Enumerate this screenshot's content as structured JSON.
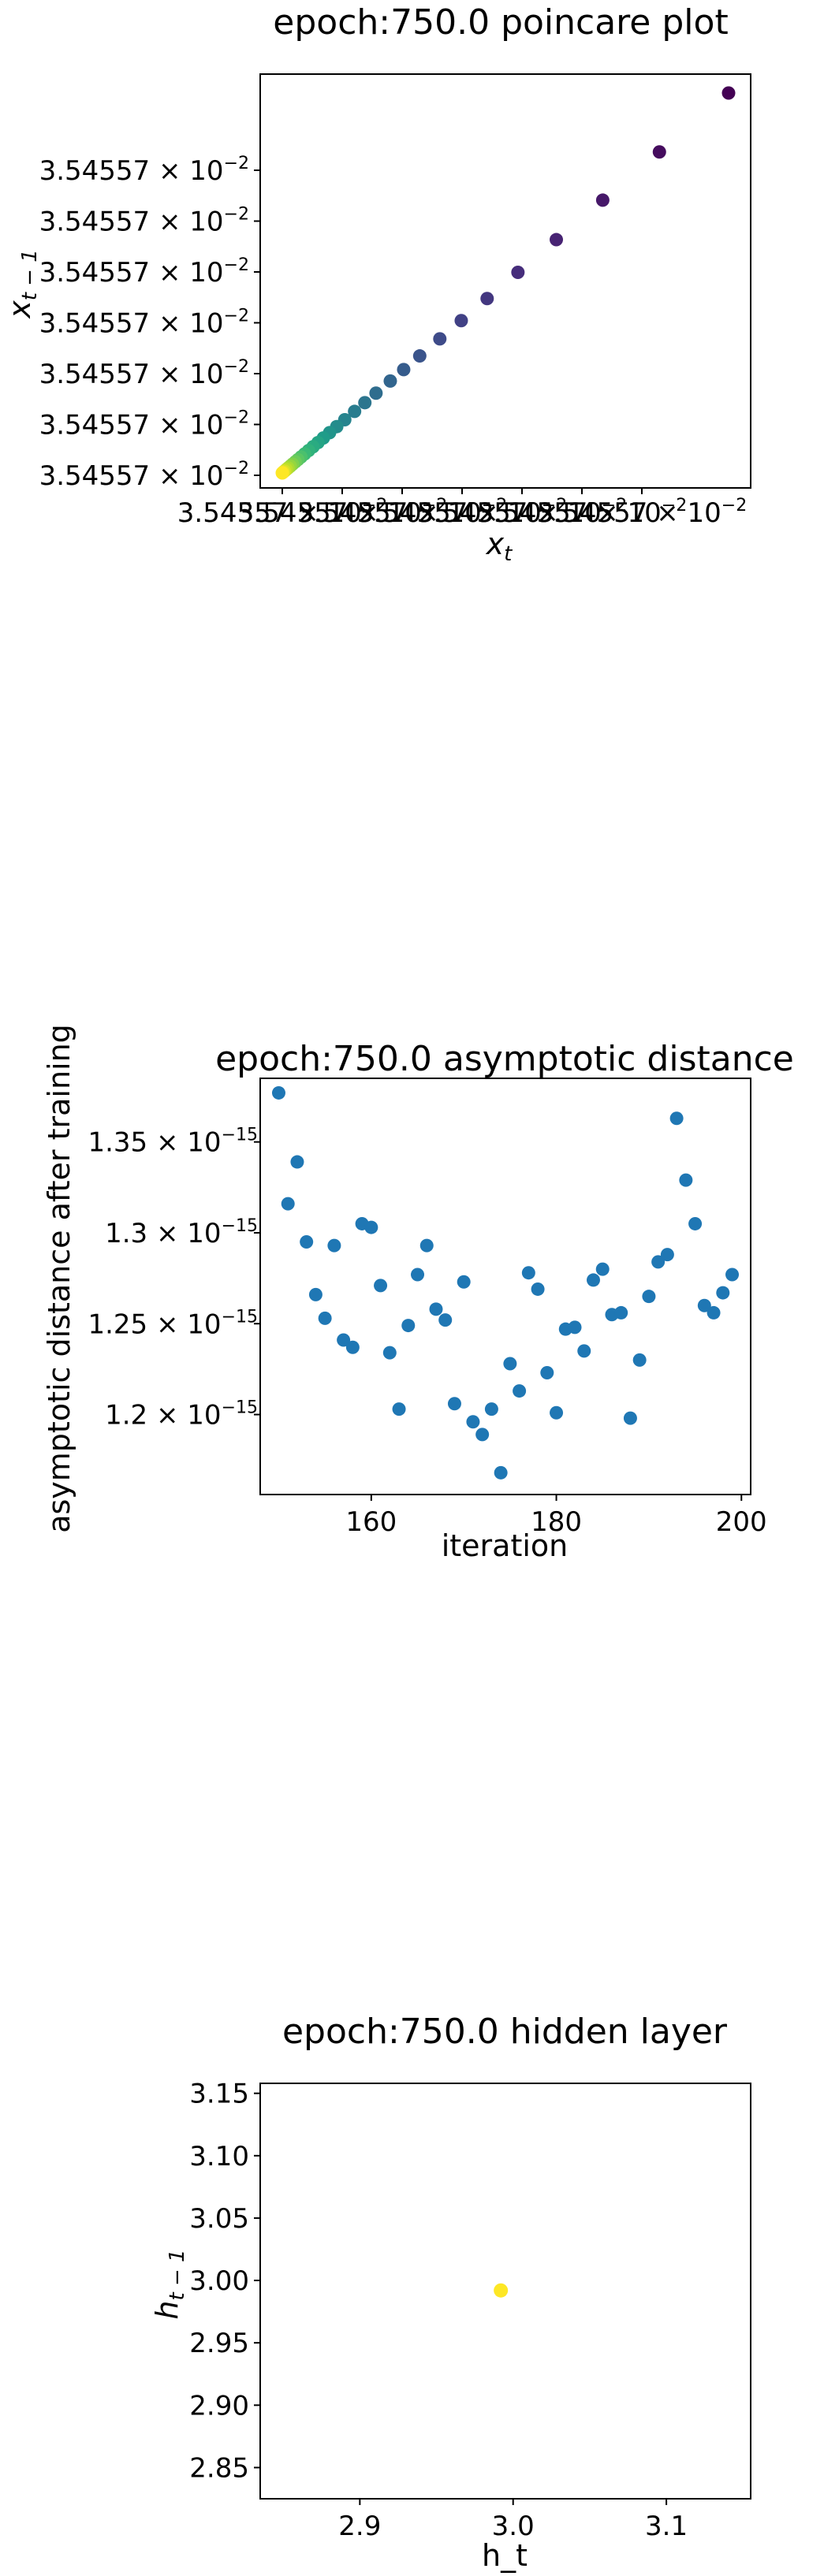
{
  "chart_data": [
    {
      "type": "scatter",
      "title": "epoch:750.0 poincare plot",
      "xlabel": "x",
      "xlabel_sub": "t",
      "ylabel": "x",
      "ylabel_sub": "t − 1",
      "tick_label": "3.54557 × 10",
      "tick_exponent": "−2",
      "x_tick_count": 7,
      "y_ticks": [
        "3.54557 × 10−2",
        "3.54557 × 10−2",
        "3.54557 × 10−2",
        "3.54557 × 10−2",
        "3.54557 × 10−2",
        "3.54557 × 10−2",
        "3.54557 × 10−2"
      ],
      "colormap": "viridis",
      "grid": false,
      "points": [
        {
          "x": 1.0,
          "y": 1.0
        },
        {
          "x": 0.845,
          "y": 0.845
        },
        {
          "x": 0.718,
          "y": 0.718
        },
        {
          "x": 0.614,
          "y": 0.614
        },
        {
          "x": 0.528,
          "y": 0.528
        },
        {
          "x": 0.459,
          "y": 0.459
        },
        {
          "x": 0.401,
          "y": 0.401
        },
        {
          "x": 0.353,
          "y": 0.353
        },
        {
          "x": 0.308,
          "y": 0.308
        },
        {
          "x": 0.272,
          "y": 0.272
        },
        {
          "x": 0.242,
          "y": 0.242
        },
        {
          "x": 0.21,
          "y": 0.21
        },
        {
          "x": 0.185,
          "y": 0.185
        },
        {
          "x": 0.162,
          "y": 0.162
        },
        {
          "x": 0.14,
          "y": 0.14
        },
        {
          "x": 0.122,
          "y": 0.122
        },
        {
          "x": 0.106,
          "y": 0.106
        },
        {
          "x": 0.092,
          "y": 0.092
        },
        {
          "x": 0.08,
          "y": 0.08
        },
        {
          "x": 0.069,
          "y": 0.069
        },
        {
          "x": 0.059,
          "y": 0.059
        },
        {
          "x": 0.05,
          "y": 0.05
        },
        {
          "x": 0.042,
          "y": 0.042
        },
        {
          "x": 0.035,
          "y": 0.035
        },
        {
          "x": 0.029,
          "y": 0.029
        },
        {
          "x": 0.023,
          "y": 0.023
        },
        {
          "x": 0.018,
          "y": 0.018
        },
        {
          "x": 0.013,
          "y": 0.013
        },
        {
          "x": 0.009,
          "y": 0.009
        },
        {
          "x": 0.005,
          "y": 0.005
        },
        {
          "x": 0.002,
          "y": 0.002
        },
        {
          "x": 0.0,
          "y": 0.0
        }
      ]
    },
    {
      "type": "scatter",
      "title": "epoch:750.0 asymptotic distance",
      "xlabel": "iteration",
      "ylabel": "asymptotic distance after training",
      "xlim": [
        148,
        201
      ],
      "ylim": [
        1.156,
        1.385
      ],
      "y_scale_exponent": "−15",
      "x_ticks": [
        160,
        180,
        200
      ],
      "y_ticks": [
        1.2,
        1.25,
        1.3,
        1.35
      ],
      "y_tick_labels": [
        "1.2 × 10",
        "1.25 × 10",
        "1.3 × 10",
        "1.35 × 10"
      ],
      "color": "#1f77b4",
      "grid": false,
      "x": [
        150,
        151,
        152,
        153,
        154,
        155,
        156,
        157,
        158,
        159,
        160,
        161,
        162,
        163,
        164,
        165,
        166,
        167,
        168,
        169,
        170,
        171,
        172,
        173,
        174,
        175,
        176,
        177,
        178,
        179,
        180,
        181,
        182,
        183,
        184,
        185,
        186,
        187,
        188,
        189,
        190,
        191,
        192,
        193,
        194,
        195,
        196,
        197,
        198,
        199
      ],
      "y": [
        1.377,
        1.316,
        1.339,
        1.295,
        1.266,
        1.253,
        1.293,
        1.241,
        1.237,
        1.305,
        1.303,
        1.271,
        1.234,
        1.203,
        1.249,
        1.277,
        1.293,
        1.258,
        1.252,
        1.206,
        1.273,
        1.196,
        1.189,
        1.203,
        1.168,
        1.228,
        1.213,
        1.278,
        1.269,
        1.223,
        1.201,
        1.247,
        1.248,
        1.235,
        1.274,
        1.28,
        1.255,
        1.256,
        1.198,
        1.23,
        1.265,
        1.284,
        1.288,
        1.363,
        1.329,
        1.305,
        1.26,
        1.256,
        1.267,
        1.277
      ]
    },
    {
      "type": "scatter",
      "title": "epoch:750.0 hidden layer",
      "xlabel": "h_t",
      "ylabel": "h",
      "ylabel_sub": "t − 1",
      "xlim": [
        2.835,
        3.155
      ],
      "ylim": [
        2.825,
        3.158
      ],
      "x_ticks": [
        2.9,
        3.0,
        3.1
      ],
      "x_tick_labels": [
        "2.9",
        "3.0",
        "3.1"
      ],
      "y_ticks": [
        2.85,
        2.9,
        2.95,
        3.0,
        3.05,
        3.1,
        3.15
      ],
      "y_tick_labels": [
        "2.85",
        "2.90",
        "2.95",
        "3.00",
        "3.05",
        "3.10",
        "3.15"
      ],
      "color": "#fde725",
      "grid": false,
      "points": [
        {
          "x": 2.992,
          "y": 2.992
        }
      ]
    }
  ]
}
